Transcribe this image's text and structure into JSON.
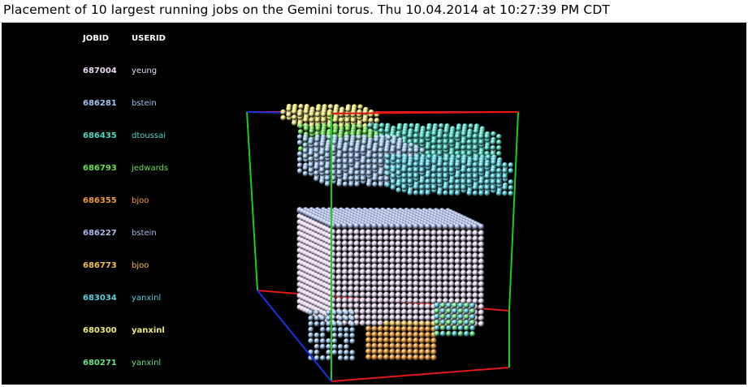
{
  "window": {
    "title": "Placement of 10 largest running jobs on the Gemini torus. Thu 10.04.2014 at 10:27:39 PM CDT"
  },
  "legend": {
    "header_jobid": "JOBID",
    "header_userid": "USERID",
    "rows": [
      {
        "jobid": "687004",
        "userid": "yeung",
        "color": "#e8d8f0"
      },
      {
        "jobid": "686281",
        "userid": "bstein",
        "color": "#9ec4ee"
      },
      {
        "jobid": "686435",
        "userid": "dtoussai",
        "color": "#4ed8c2"
      },
      {
        "jobid": "686793",
        "userid": "jedwards",
        "color": "#68e04e"
      },
      {
        "jobid": "686355",
        "userid": "bjoo",
        "color": "#f09a38"
      },
      {
        "jobid": "686227",
        "userid": "bstein",
        "color": "#aab8e8"
      },
      {
        "jobid": "686773",
        "userid": "bjoo",
        "color": "#f0c050"
      },
      {
        "jobid": "683034",
        "userid": "yanxinl",
        "color": "#5ad2e0"
      },
      {
        "jobid": "680300",
        "userid": "yanxinl",
        "color": "#f0ea78"
      },
      {
        "jobid": "680271",
        "userid": "yanxinl",
        "color": "#68e488"
      }
    ]
  },
  "scene": {
    "axis_colors": {
      "x": "#e01818",
      "y": "#18d018",
      "z": "#1830e0"
    }
  }
}
